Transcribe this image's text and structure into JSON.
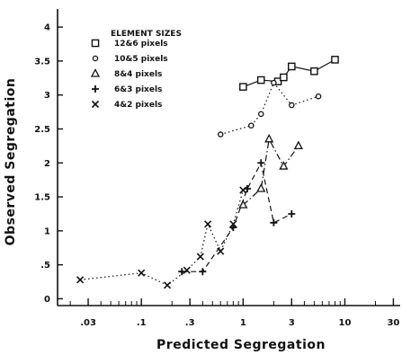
{
  "chart_data": {
    "type": "scatter",
    "title": "",
    "xlabel": "Predicted Segregation",
    "ylabel": "Observed Segregation",
    "x_scale": "log",
    "xlim": [
      0.015,
      35
    ],
    "ylim": [
      -0.1,
      4.2
    ],
    "x_ticks": [
      0.03,
      0.1,
      0.3,
      1,
      3,
      10,
      30
    ],
    "x_tick_labels": [
      ".03",
      ".1",
      ".3",
      "1",
      "3",
      "10",
      "30"
    ],
    "y_ticks": [
      0,
      0.5,
      1,
      1.5,
      2,
      2.5,
      3,
      3.5,
      4
    ],
    "y_tick_labels": [
      "0",
      ".5",
      "1",
      "1.5",
      "2",
      "2.5",
      "3",
      "3.5",
      "4"
    ],
    "grid": false,
    "legend_title": "ELEMENT SIZES",
    "legend_position": "top-left",
    "series": [
      {
        "name": "12&6 pixels",
        "marker": "square",
        "line": "solid",
        "x": [
          1.0,
          1.5,
          2.2,
          2.5,
          3.0,
          5.0,
          8.0
        ],
        "y": [
          3.12,
          3.22,
          3.2,
          3.26,
          3.42,
          3.35,
          3.52
        ]
      },
      {
        "name": "10&5 pixels",
        "marker": "circle",
        "line": "dotted",
        "x": [
          0.6,
          1.2,
          1.5,
          2.0,
          3.0,
          5.5
        ],
        "y": [
          2.42,
          2.55,
          2.72,
          3.18,
          2.85,
          2.98
        ]
      },
      {
        "name": "8&4 pixels",
        "marker": "triangle",
        "line": "dash-dot",
        "x": [
          1.0,
          1.5,
          1.8,
          2.5,
          3.5
        ],
        "y": [
          1.38,
          1.62,
          2.35,
          1.95,
          2.25
        ]
      },
      {
        "name": "6&3 pixels",
        "marker": "plus",
        "line": "dashed",
        "x": [
          0.25,
          0.4,
          0.8,
          1.1,
          1.5,
          2.0,
          3.0
        ],
        "y": [
          0.4,
          0.4,
          1.05,
          1.62,
          2.0,
          1.12,
          1.25
        ]
      },
      {
        "name": "4&2 pixels",
        "marker": "x",
        "line": "dotted",
        "x": [
          0.025,
          0.1,
          0.18,
          0.28,
          0.38,
          0.45,
          0.6,
          0.8,
          1.0
        ],
        "y": [
          0.28,
          0.38,
          0.2,
          0.42,
          0.62,
          1.1,
          0.7,
          1.1,
          1.6
        ]
      }
    ]
  }
}
